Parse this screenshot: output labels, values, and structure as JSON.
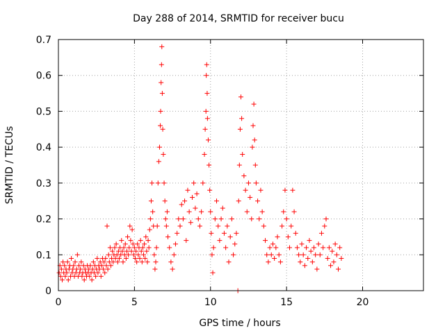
{
  "chart_data": {
    "type": "scatter",
    "title": "Day 288 of 2014, SRMTID for receiver bucu",
    "xlabel": "GPS time / hours",
    "ylabel": "SRMTID / TECUs",
    "xlim": [
      0,
      24
    ],
    "ylim": [
      0,
      0.7
    ],
    "xticks": [
      0,
      5,
      10,
      15,
      20
    ],
    "yticks": [
      0,
      0.1,
      0.2,
      0.3,
      0.4,
      0.5,
      0.6,
      0.7
    ],
    "xtick_labels": [
      "0",
      "5",
      "10",
      "15",
      "20"
    ],
    "ytick_labels": [
      "0",
      "0.1",
      "0.2",
      "0.3",
      "0.4",
      "0.5",
      "0.6",
      "0.7"
    ],
    "grid": true,
    "marker": "+",
    "series": [
      {
        "name": "SRMTID",
        "color": "#ff0000",
        "points": [
          [
            0.05,
            0.05
          ],
          [
            0.1,
            0.07
          ],
          [
            0.15,
            0.04
          ],
          [
            0.2,
            0.06
          ],
          [
            0.25,
            0.03
          ],
          [
            0.3,
            0.08
          ],
          [
            0.35,
            0.05
          ],
          [
            0.4,
            0.07
          ],
          [
            0.45,
            0.04
          ],
          [
            0.5,
            0.06
          ],
          [
            0.55,
            0.05
          ],
          [
            0.6,
            0.08
          ],
          [
            0.65,
            0.03
          ],
          [
            0.7,
            0.06
          ],
          [
            0.75,
            0.07
          ],
          [
            0.8,
            0.04
          ],
          [
            0.85,
            0.09
          ],
          [
            0.9,
            0.05
          ],
          [
            0.95,
            0.06
          ],
          [
            1.0,
            0.07
          ],
          [
            1.05,
            0.04
          ],
          [
            1.1,
            0.08
          ],
          [
            1.15,
            0.05
          ],
          [
            1.2,
            0.06
          ],
          [
            1.25,
            0.1
          ],
          [
            1.3,
            0.04
          ],
          [
            1.35,
            0.07
          ],
          [
            1.4,
            0.05
          ],
          [
            1.45,
            0.06
          ],
          [
            1.5,
            0.08
          ],
          [
            1.55,
            0.04
          ],
          [
            1.6,
            0.05
          ],
          [
            1.65,
            0.07
          ],
          [
            1.7,
            0.03
          ],
          [
            1.75,
            0.06
          ],
          [
            1.8,
            0.05
          ],
          [
            1.85,
            0.04
          ],
          [
            1.9,
            0.07
          ],
          [
            1.95,
            0.05
          ],
          [
            2.0,
            0.06
          ],
          [
            2.05,
            0.04
          ],
          [
            2.1,
            0.07
          ],
          [
            2.15,
            0.05
          ],
          [
            2.2,
            0.03
          ],
          [
            2.25,
            0.06
          ],
          [
            2.3,
            0.08
          ],
          [
            2.35,
            0.05
          ],
          [
            2.4,
            0.07
          ],
          [
            2.45,
            0.04
          ],
          [
            2.5,
            0.06
          ],
          [
            2.55,
            0.09
          ],
          [
            2.6,
            0.05
          ],
          [
            2.65,
            0.07
          ],
          [
            2.7,
            0.06
          ],
          [
            2.75,
            0.08
          ],
          [
            2.8,
            0.04
          ],
          [
            2.85,
            0.07
          ],
          [
            2.9,
            0.09
          ],
          [
            2.95,
            0.06
          ],
          [
            3.0,
            0.08
          ],
          [
            3.05,
            0.05
          ],
          [
            3.1,
            0.09
          ],
          [
            3.15,
            0.07
          ],
          [
            3.2,
            0.18
          ],
          [
            3.25,
            0.06
          ],
          [
            3.3,
            0.1
          ],
          [
            3.35,
            0.08
          ],
          [
            3.4,
            0.12
          ],
          [
            3.45,
            0.07
          ],
          [
            3.5,
            0.09
          ],
          [
            3.55,
            0.11
          ],
          [
            3.6,
            0.08
          ],
          [
            3.65,
            0.1
          ],
          [
            3.7,
            0.12
          ],
          [
            3.75,
            0.09
          ],
          [
            3.8,
            0.13
          ],
          [
            3.85,
            0.1
          ],
          [
            3.9,
            0.08
          ],
          [
            3.95,
            0.11
          ],
          [
            4.0,
            0.09
          ],
          [
            4.05,
            0.12
          ],
          [
            4.1,
            0.1
          ],
          [
            4.15,
            0.14
          ],
          [
            4.2,
            0.11
          ],
          [
            4.25,
            0.08
          ],
          [
            4.3,
            0.12
          ],
          [
            4.35,
            0.1
          ],
          [
            4.4,
            0.13
          ],
          [
            4.45,
            0.09
          ],
          [
            4.5,
            0.11
          ],
          [
            4.55,
            0.15
          ],
          [
            4.6,
            0.1
          ],
          [
            4.65,
            0.12
          ],
          [
            4.7,
            0.18
          ],
          [
            4.75,
            0.14
          ],
          [
            4.8,
            0.11
          ],
          [
            4.85,
            0.17
          ],
          [
            4.9,
            0.13
          ],
          [
            4.95,
            0.1
          ],
          [
            5.0,
            0.12
          ],
          [
            5.05,
            0.09
          ],
          [
            5.1,
            0.11
          ],
          [
            5.15,
            0.08
          ],
          [
            5.2,
            0.13
          ],
          [
            5.25,
            0.1
          ],
          [
            5.3,
            0.12
          ],
          [
            5.35,
            0.09
          ],
          [
            5.4,
            0.14
          ],
          [
            5.45,
            0.11
          ],
          [
            5.5,
            0.08
          ],
          [
            5.55,
            0.12
          ],
          [
            5.6,
            0.1
          ],
          [
            5.65,
            0.13
          ],
          [
            5.7,
            0.09
          ],
          [
            5.75,
            0.15
          ],
          [
            5.8,
            0.11
          ],
          [
            5.85,
            0.08
          ],
          [
            5.9,
            0.14
          ],
          [
            5.95,
            0.12
          ],
          [
            6.0,
            0.17
          ],
          [
            6.05,
            0.2
          ],
          [
            6.1,
            0.25
          ],
          [
            6.15,
            0.3
          ],
          [
            6.2,
            0.22
          ],
          [
            6.25,
            0.18
          ],
          [
            6.3,
            0.1
          ],
          [
            6.35,
            0.06
          ],
          [
            6.4,
            0.08
          ],
          [
            6.45,
            0.12
          ],
          [
            6.5,
            0.18
          ],
          [
            6.55,
            0.3
          ],
          [
            6.6,
            0.36
          ],
          [
            6.65,
            0.4
          ],
          [
            6.7,
            0.46
          ],
          [
            6.72,
            0.5
          ],
          [
            6.75,
            0.58
          ],
          [
            6.78,
            0.63
          ],
          [
            6.8,
            0.68
          ],
          [
            6.83,
            0.55
          ],
          [
            6.86,
            0.45
          ],
          [
            6.9,
            0.38
          ],
          [
            6.95,
            0.3
          ],
          [
            7.0,
            0.25
          ],
          [
            7.05,
            0.2
          ],
          [
            7.1,
            0.18
          ],
          [
            7.15,
            0.22
          ],
          [
            7.2,
            0.15
          ],
          [
            7.3,
            0.12
          ],
          [
            7.4,
            0.08
          ],
          [
            7.5,
            0.06
          ],
          [
            7.6,
            0.1
          ],
          [
            7.7,
            0.13
          ],
          [
            7.8,
            0.16
          ],
          [
            7.9,
            0.2
          ],
          [
            8.0,
            0.18
          ],
          [
            8.1,
            0.24
          ],
          [
            8.2,
            0.2
          ],
          [
            8.3,
            0.25
          ],
          [
            8.4,
            0.14
          ],
          [
            8.5,
            0.28
          ],
          [
            8.6,
            0.22
          ],
          [
            8.7,
            0.19
          ],
          [
            8.8,
            0.26
          ],
          [
            8.9,
            0.3
          ],
          [
            9.0,
            0.23
          ],
          [
            9.1,
            0.27
          ],
          [
            9.2,
            0.2
          ],
          [
            9.3,
            0.18
          ],
          [
            9.4,
            0.22
          ],
          [
            9.5,
            0.3
          ],
          [
            9.6,
            0.38
          ],
          [
            9.65,
            0.45
          ],
          [
            9.7,
            0.5
          ],
          [
            9.72,
            0.6
          ],
          [
            9.75,
            0.63
          ],
          [
            9.78,
            0.55
          ],
          [
            9.8,
            0.48
          ],
          [
            9.85,
            0.42
          ],
          [
            9.9,
            0.35
          ],
          [
            9.95,
            0.28
          ],
          [
            10.0,
            0.22
          ],
          [
            10.05,
            0.16
          ],
          [
            10.1,
            0.1
          ],
          [
            10.15,
            0.05
          ],
          [
            10.2,
            0.12
          ],
          [
            10.3,
            0.2
          ],
          [
            10.4,
            0.25
          ],
          [
            10.5,
            0.18
          ],
          [
            10.6,
            0.14
          ],
          [
            10.7,
            0.2
          ],
          [
            10.8,
            0.23
          ],
          [
            10.9,
            0.16
          ],
          [
            11.0,
            0.12
          ],
          [
            11.1,
            0.18
          ],
          [
            11.2,
            0.08
          ],
          [
            11.3,
            0.15
          ],
          [
            11.4,
            0.2
          ],
          [
            11.5,
            0.1
          ],
          [
            11.6,
            0.13
          ],
          [
            11.7,
            0.16
          ],
          [
            11.8,
            0.0
          ],
          [
            11.85,
            0.25
          ],
          [
            11.9,
            0.35
          ],
          [
            11.95,
            0.45
          ],
          [
            12.0,
            0.54
          ],
          [
            12.05,
            0.48
          ],
          [
            12.1,
            0.38
          ],
          [
            12.2,
            0.32
          ],
          [
            12.3,
            0.28
          ],
          [
            12.4,
            0.22
          ],
          [
            12.5,
            0.3
          ],
          [
            12.6,
            0.26
          ],
          [
            12.7,
            0.2
          ],
          [
            12.75,
            0.4
          ],
          [
            12.8,
            0.46
          ],
          [
            12.85,
            0.52
          ],
          [
            12.9,
            0.42
          ],
          [
            12.95,
            0.35
          ],
          [
            13.0,
            0.3
          ],
          [
            13.1,
            0.25
          ],
          [
            13.2,
            0.2
          ],
          [
            13.3,
            0.28
          ],
          [
            13.4,
            0.22
          ],
          [
            13.5,
            0.18
          ],
          [
            13.6,
            0.14
          ],
          [
            13.7,
            0.1
          ],
          [
            13.8,
            0.08
          ],
          [
            13.9,
            0.12
          ],
          [
            14.0,
            0.1
          ],
          [
            14.1,
            0.13
          ],
          [
            14.2,
            0.09
          ],
          [
            14.3,
            0.12
          ],
          [
            14.4,
            0.15
          ],
          [
            14.5,
            0.1
          ],
          [
            14.6,
            0.08
          ],
          [
            14.7,
            0.18
          ],
          [
            14.8,
            0.22
          ],
          [
            14.9,
            0.28
          ],
          [
            15.0,
            0.2
          ],
          [
            15.1,
            0.15
          ],
          [
            15.2,
            0.12
          ],
          [
            15.3,
            0.18
          ],
          [
            15.4,
            0.28
          ],
          [
            15.5,
            0.22
          ],
          [
            15.6,
            0.16
          ],
          [
            15.7,
            0.12
          ],
          [
            15.8,
            0.1
          ],
          [
            15.9,
            0.08
          ],
          [
            16.0,
            0.13
          ],
          [
            16.1,
            0.1
          ],
          [
            16.2,
            0.07
          ],
          [
            16.3,
            0.12
          ],
          [
            16.4,
            0.09
          ],
          [
            16.5,
            0.14
          ],
          [
            16.6,
            0.11
          ],
          [
            16.7,
            0.08
          ],
          [
            16.8,
            0.12
          ],
          [
            16.9,
            0.1
          ],
          [
            17.0,
            0.06
          ],
          [
            17.1,
            0.13
          ],
          [
            17.2,
            0.1
          ],
          [
            17.3,
            0.16
          ],
          [
            17.4,
            0.12
          ],
          [
            17.5,
            0.18
          ],
          [
            17.6,
            0.2
          ],
          [
            17.7,
            0.09
          ],
          [
            17.8,
            0.12
          ],
          [
            17.9,
            0.07
          ],
          [
            18.0,
            0.11
          ],
          [
            18.1,
            0.08
          ],
          [
            18.2,
            0.13
          ],
          [
            18.3,
            0.1
          ],
          [
            18.4,
            0.06
          ],
          [
            18.5,
            0.12
          ],
          [
            18.6,
            0.09
          ]
        ]
      }
    ]
  }
}
